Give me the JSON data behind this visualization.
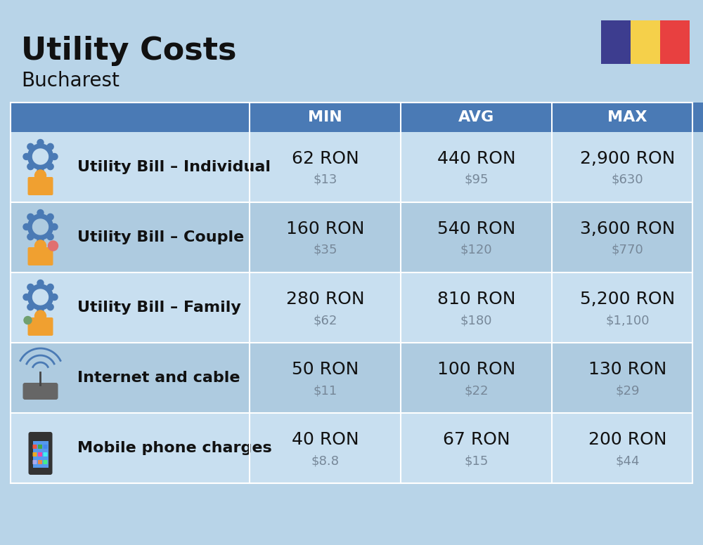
{
  "title": "Utility Costs",
  "subtitle": "Bucharest",
  "background_color": "#b8d4e8",
  "header_bg_color": "#4a7ab5",
  "header_text_color": "#ffffff",
  "row_bg_color_light": "#c8dff0",
  "row_bg_color_dark": "#aecbe0",
  "col_headers": [
    "MIN",
    "AVG",
    "MAX"
  ],
  "rows": [
    {
      "label": "Utility Bill – Individual",
      "min_ron": "62 RON",
      "min_usd": "$13",
      "avg_ron": "440 RON",
      "avg_usd": "$95",
      "max_ron": "2,900 RON",
      "max_usd": "$630",
      "icon": "utility_individual"
    },
    {
      "label": "Utility Bill – Couple",
      "min_ron": "160 RON",
      "min_usd": "$35",
      "avg_ron": "540 RON",
      "avg_usd": "$120",
      "max_ron": "3,600 RON",
      "max_usd": "$770",
      "icon": "utility_couple"
    },
    {
      "label": "Utility Bill – Family",
      "min_ron": "280 RON",
      "min_usd": "$62",
      "avg_ron": "810 RON",
      "avg_usd": "$180",
      "max_ron": "5,200 RON",
      "max_usd": "$1,100",
      "icon": "utility_family"
    },
    {
      "label": "Internet and cable",
      "min_ron": "50 RON",
      "min_usd": "$11",
      "avg_ron": "100 RON",
      "avg_usd": "$22",
      "max_ron": "130 RON",
      "max_usd": "$29",
      "icon": "internet"
    },
    {
      "label": "Mobile phone charges",
      "min_ron": "40 RON",
      "min_usd": "$8.8",
      "avg_ron": "67 RON",
      "avg_usd": "$15",
      "max_ron": "200 RON",
      "max_usd": "$44",
      "icon": "mobile"
    }
  ],
  "flag_colors": [
    "#3d3d8f",
    "#f5d04a",
    "#e84040"
  ],
  "title_fontsize": 32,
  "subtitle_fontsize": 20,
  "header_fontsize": 16,
  "label_fontsize": 16,
  "value_fontsize": 18,
  "usd_fontsize": 13
}
